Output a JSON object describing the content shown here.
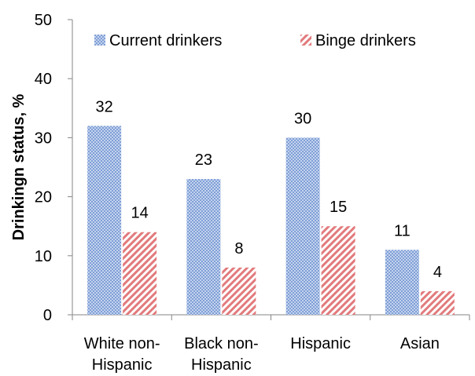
{
  "chart_data": {
    "type": "bar",
    "title": "",
    "xlabel": "",
    "ylabel": "Drinkingn status, %",
    "ylim": [
      0,
      50
    ],
    "yticks": [
      "0",
      "10",
      "20",
      "30",
      "40",
      "50"
    ],
    "categories": [
      [
        "White non-",
        "Hispanic"
      ],
      [
        "Black non-",
        "Hispanic"
      ],
      [
        "Hispanic"
      ],
      [
        "Asian"
      ]
    ],
    "series": [
      {
        "name": "Current drinkers",
        "values": [
          32,
          23,
          30,
          11
        ],
        "labels": [
          "32",
          "23",
          "30",
          "11"
        ],
        "color": "#9fb8e0",
        "pattern": "checker"
      },
      {
        "name": "Binge drinkers",
        "values": [
          14,
          8,
          15,
          4
        ],
        "labels": [
          "14",
          "8",
          "15",
          "4"
        ],
        "color": "#e8888a",
        "pattern": "diagonal"
      }
    ],
    "legend_position": "top",
    "grid": false
  }
}
